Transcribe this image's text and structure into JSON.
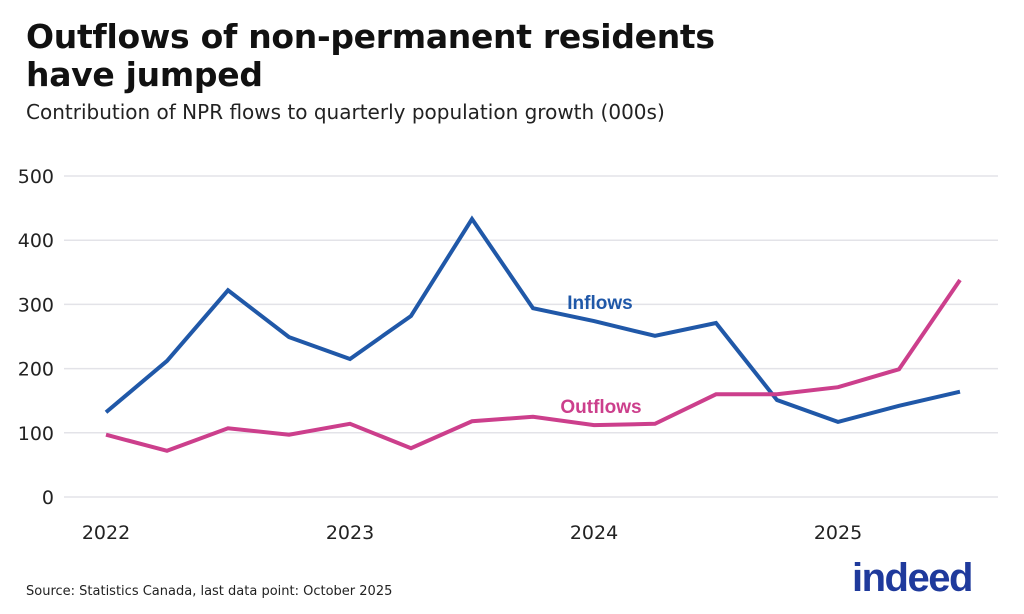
{
  "chart_data": {
    "type": "line",
    "title": "Outflows of non-permanent residents have jumped",
    "subtitle": "Contribution of NPR flows to quarterly population growth (000s)",
    "xlabel": "",
    "ylabel": "",
    "ylim": [
      0,
      500
    ],
    "yticks": [
      "0",
      "100",
      "200",
      "300",
      "400",
      "500"
    ],
    "xticks": [
      "2022",
      "2023",
      "2024",
      "2025"
    ],
    "x": [
      "2022 Q1",
      "2022 Q2",
      "2022 Q3",
      "2022 Q4",
      "2023 Q1",
      "2023 Q2",
      "2023 Q3",
      "2023 Q4",
      "2024 Q1",
      "2024 Q2",
      "2024 Q3",
      "2024 Q4",
      "2025 Q1",
      "2025 Q2",
      "2025 Q3"
    ],
    "grid": true,
    "series": [
      {
        "name": "Inflows",
        "color": "#2058a8",
        "values": [
          132,
          212,
          322,
          249,
          215,
          282,
          433,
          294,
          274,
          251,
          271,
          151,
          117,
          142,
          164
        ]
      },
      {
        "name": "Outflows",
        "color": "#cc3f8c",
        "values": [
          97,
          72,
          107,
          97,
          114,
          76,
          118,
          125,
          112,
          114,
          160,
          160,
          171,
          199,
          338
        ]
      }
    ]
  },
  "source": "Source: Statistics Canada, last data point: October 2025",
  "logo_text": "indeed"
}
